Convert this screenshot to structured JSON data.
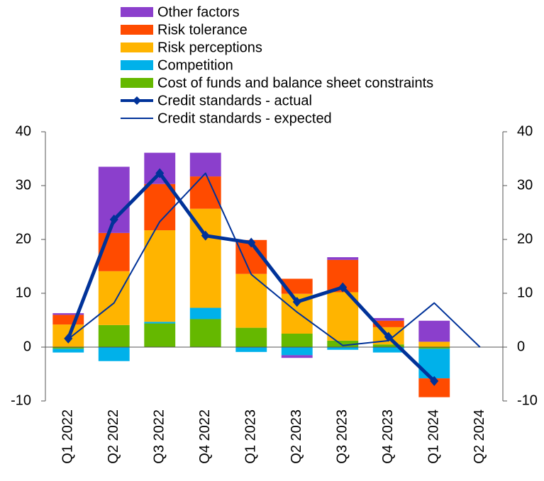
{
  "chart_data": {
    "type": "bar",
    "stacked": true,
    "categories": [
      "Q1 2022",
      "Q2 2022",
      "Q3 2022",
      "Q4 2022",
      "Q1 2023",
      "Q2 2023",
      "Q3 2023",
      "Q4 2023",
      "Q1 2024",
      "Q2 2024"
    ],
    "series": [
      {
        "name": "Other factors",
        "type": "bar",
        "color": "#8b3fcc",
        "values": [
          0.3,
          12.3,
          5.8,
          4.4,
          0,
          -0.5,
          0.5,
          0.5,
          3.9,
          null
        ]
      },
      {
        "name": "Risk tolerance",
        "type": "bar",
        "color": "#ff4b00",
        "values": [
          1.8,
          7.1,
          8.6,
          6.0,
          6.3,
          2.8,
          6.0,
          1.2,
          -3.5,
          null
        ]
      },
      {
        "name": "Risk perceptions",
        "type": "bar",
        "color": "#ffb400",
        "values": [
          4.2,
          10.0,
          17.0,
          18.4,
          10.0,
          7.4,
          9.0,
          3.2,
          1.0,
          null
        ]
      },
      {
        "name": "Competition",
        "type": "bar",
        "color": "#00b1ea",
        "values": [
          -0.7,
          -2.6,
          0.3,
          2.1,
          -0.9,
          -1.5,
          -0.5,
          -1.0,
          -5.5,
          null
        ]
      },
      {
        "name": "Cost of funds and balance sheet constraints",
        "type": "bar",
        "color": "#65b800",
        "values": [
          -0.3,
          4.1,
          4.4,
          5.2,
          3.6,
          2.5,
          1.2,
          0.5,
          -0.3,
          null
        ]
      },
      {
        "name": "Credit standards - actual",
        "type": "line",
        "marker": "diamond",
        "color": "#003299",
        "values": [
          1.6,
          23.7,
          32.3,
          20.7,
          19.4,
          8.4,
          11.1,
          1.9,
          -6.3,
          null
        ]
      },
      {
        "name": "Credit standards - expected",
        "type": "line",
        "color": "#003299",
        "values": [
          1.5,
          8.2,
          23.3,
          32.3,
          13.5,
          6.5,
          0.3,
          1.2,
          8.2,
          0.0
        ]
      }
    ],
    "ylim": [
      -10,
      40
    ],
    "yticks": [
      -10,
      0,
      10,
      20,
      30,
      40
    ],
    "y2lim": [
      -10,
      40
    ],
    "y2ticks": [
      -10,
      0,
      10,
      20,
      30,
      40
    ],
    "grid": false
  }
}
